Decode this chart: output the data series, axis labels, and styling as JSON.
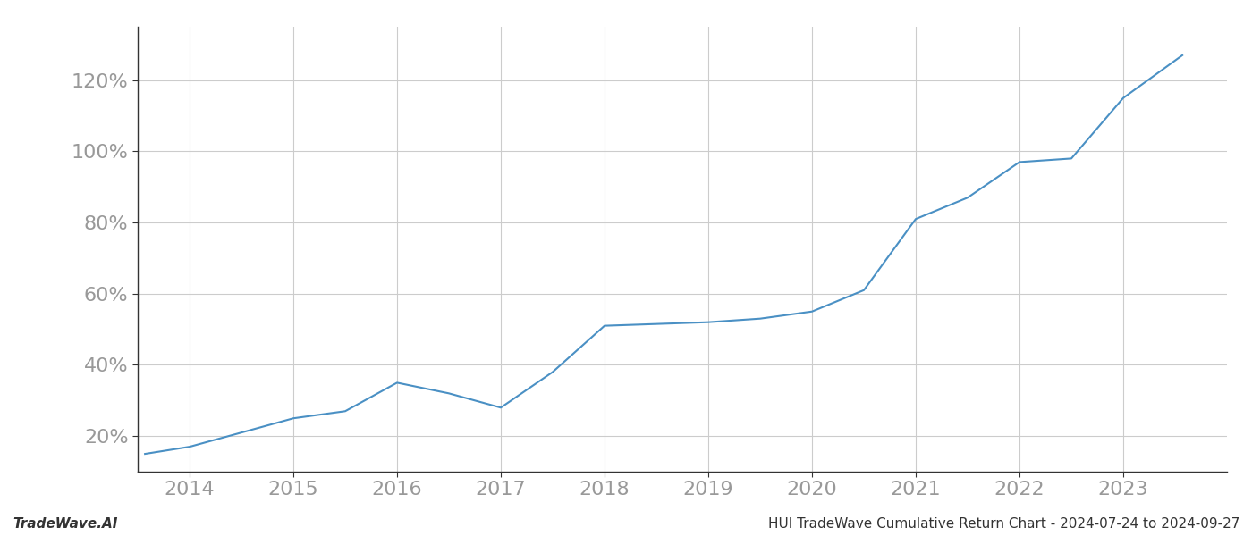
{
  "x_years": [
    2013.57,
    2014.0,
    2014.5,
    2015.0,
    2015.5,
    2016.0,
    2016.5,
    2017.0,
    2017.5,
    2018.0,
    2018.5,
    2019.0,
    2019.5,
    2020.0,
    2020.5,
    2021.0,
    2021.5,
    2022.0,
    2022.5,
    2023.0,
    2023.57
  ],
  "y_values": [
    15,
    17,
    21,
    25,
    27,
    35,
    32,
    28,
    38,
    51,
    51.5,
    52,
    53,
    55,
    61,
    81,
    87,
    97,
    98,
    115,
    127
  ],
  "line_color": "#4a90c4",
  "line_width": 1.5,
  "xlabel": "",
  "ylabel": "",
  "title_left": "TradeWave.AI",
  "title_right": "HUI TradeWave Cumulative Return Chart - 2024-07-24 to 2024-09-27",
  "x_ticks": [
    2014,
    2015,
    2016,
    2017,
    2018,
    2019,
    2020,
    2021,
    2022,
    2023
  ],
  "y_ticks": [
    20,
    40,
    60,
    80,
    100,
    120
  ],
  "ylim": [
    10,
    135
  ],
  "xlim": [
    2013.5,
    2024.0
  ],
  "grid_color": "#cccccc",
  "bg_color": "#ffffff",
  "tick_color": "#999999",
  "title_fontsize": 11,
  "tick_fontsize": 16,
  "footer_fontsize": 11
}
